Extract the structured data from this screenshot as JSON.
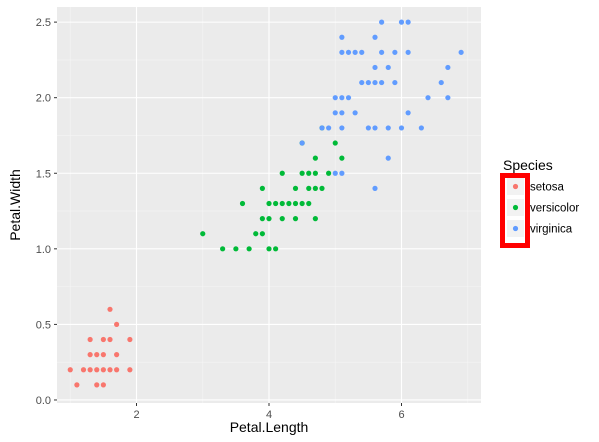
{
  "chart_data": {
    "type": "scatter",
    "xlabel": "Petal.Length",
    "ylabel": "Petal.Width",
    "xlim": [
      0.8,
      7.2
    ],
    "ylim": [
      -0.02,
      2.6
    ],
    "xticks": [
      2,
      4,
      6
    ],
    "yticks": [
      0.0,
      0.5,
      1.0,
      1.5,
      2.0,
      2.5
    ],
    "xtick_labels": [
      "2",
      "4",
      "6"
    ],
    "ytick_labels": [
      "0.0",
      "0.5",
      "1.0",
      "1.5",
      "2.0",
      "2.5"
    ],
    "grid": true,
    "legend": {
      "title": "Species",
      "position": "right",
      "highlight_color": "#ff0000"
    },
    "series": [
      {
        "name": "setosa",
        "color": "#f8766d",
        "points": [
          [
            1.0,
            0.2
          ],
          [
            1.1,
            0.1
          ],
          [
            1.2,
            0.2
          ],
          [
            1.3,
            0.2
          ],
          [
            1.3,
            0.3
          ],
          [
            1.3,
            0.4
          ],
          [
            1.4,
            0.1
          ],
          [
            1.4,
            0.2
          ],
          [
            1.4,
            0.3
          ],
          [
            1.5,
            0.1
          ],
          [
            1.5,
            0.2
          ],
          [
            1.5,
            0.3
          ],
          [
            1.5,
            0.4
          ],
          [
            1.6,
            0.2
          ],
          [
            1.6,
            0.4
          ],
          [
            1.6,
            0.6
          ],
          [
            1.7,
            0.2
          ],
          [
            1.7,
            0.3
          ],
          [
            1.7,
            0.5
          ],
          [
            1.9,
            0.2
          ],
          [
            1.9,
            0.4
          ]
        ]
      },
      {
        "name": "versicolor",
        "color": "#00ba38",
        "points": [
          [
            3.0,
            1.1
          ],
          [
            3.3,
            1.0
          ],
          [
            3.5,
            1.0
          ],
          [
            3.6,
            1.3
          ],
          [
            3.7,
            1.0
          ],
          [
            3.8,
            1.1
          ],
          [
            3.9,
            1.1
          ],
          [
            3.9,
            1.2
          ],
          [
            3.9,
            1.4
          ],
          [
            4.0,
            1.0
          ],
          [
            4.0,
            1.2
          ],
          [
            4.0,
            1.3
          ],
          [
            4.1,
            1.0
          ],
          [
            4.1,
            1.3
          ],
          [
            4.2,
            1.2
          ],
          [
            4.2,
            1.3
          ],
          [
            4.2,
            1.5
          ],
          [
            4.3,
            1.3
          ],
          [
            4.4,
            1.2
          ],
          [
            4.4,
            1.3
          ],
          [
            4.4,
            1.4
          ],
          [
            4.5,
            1.3
          ],
          [
            4.5,
            1.5
          ],
          [
            4.5,
            1.7
          ],
          [
            4.6,
            1.3
          ],
          [
            4.6,
            1.4
          ],
          [
            4.6,
            1.5
          ],
          [
            4.7,
            1.2
          ],
          [
            4.7,
            1.4
          ],
          [
            4.7,
            1.5
          ],
          [
            4.7,
            1.6
          ],
          [
            4.8,
            1.4
          ],
          [
            4.8,
            1.8
          ],
          [
            4.9,
            1.5
          ],
          [
            5.0,
            1.7
          ],
          [
            5.1,
            1.6
          ]
        ]
      },
      {
        "name": "virginica",
        "color": "#619cff",
        "points": [
          [
            4.5,
            1.7
          ],
          [
            4.8,
            1.8
          ],
          [
            4.9,
            1.8
          ],
          [
            5.0,
            1.5
          ],
          [
            5.0,
            1.9
          ],
          [
            5.0,
            2.0
          ],
          [
            5.1,
            1.5
          ],
          [
            5.1,
            1.8
          ],
          [
            5.1,
            1.9
          ],
          [
            5.1,
            2.0
          ],
          [
            5.1,
            2.3
          ],
          [
            5.1,
            2.4
          ],
          [
            5.2,
            2.0
          ],
          [
            5.2,
            2.3
          ],
          [
            5.3,
            1.9
          ],
          [
            5.3,
            2.3
          ],
          [
            5.4,
            2.1
          ],
          [
            5.4,
            2.3
          ],
          [
            5.5,
            1.8
          ],
          [
            5.5,
            2.1
          ],
          [
            5.6,
            1.4
          ],
          [
            5.6,
            1.8
          ],
          [
            5.6,
            2.1
          ],
          [
            5.6,
            2.2
          ],
          [
            5.6,
            2.4
          ],
          [
            5.7,
            2.1
          ],
          [
            5.7,
            2.3
          ],
          [
            5.7,
            2.5
          ],
          [
            5.8,
            1.6
          ],
          [
            5.8,
            1.8
          ],
          [
            5.8,
            2.2
          ],
          [
            5.9,
            2.1
          ],
          [
            5.9,
            2.3
          ],
          [
            6.0,
            1.8
          ],
          [
            6.0,
            2.5
          ],
          [
            6.1,
            1.9
          ],
          [
            6.1,
            2.3
          ],
          [
            6.1,
            2.5
          ],
          [
            6.3,
            1.8
          ],
          [
            6.4,
            2.0
          ],
          [
            6.6,
            2.1
          ],
          [
            6.7,
            2.0
          ],
          [
            6.7,
            2.2
          ],
          [
            6.9,
            2.3
          ]
        ]
      }
    ]
  }
}
